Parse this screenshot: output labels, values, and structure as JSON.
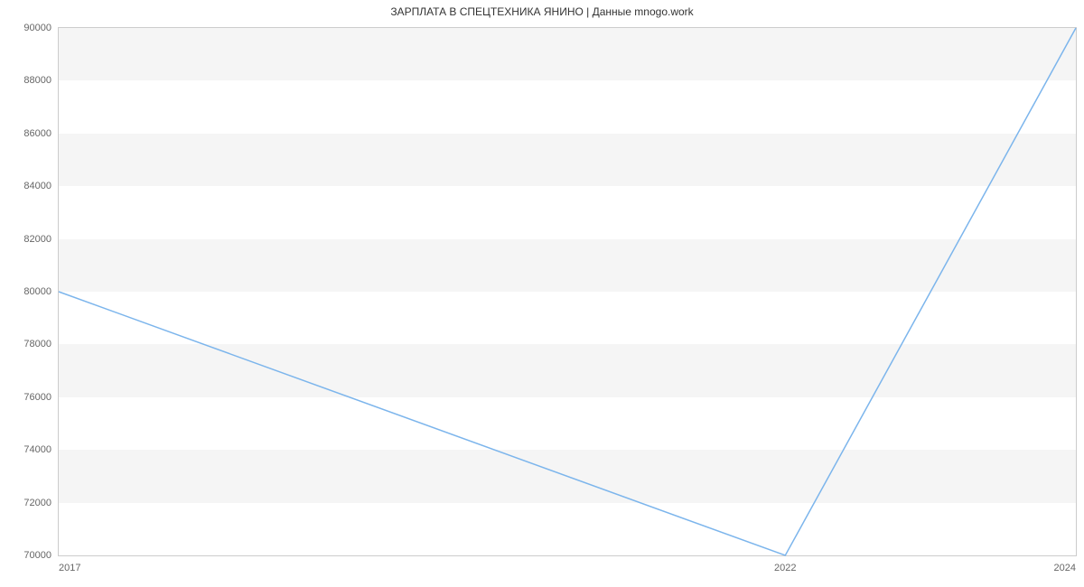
{
  "chart": {
    "type": "line",
    "title": "ЗАРПЛАТА В СПЕЦТЕХНИКА ЯНИНО | Данные mnogo.work",
    "title_fontsize": 12,
    "title_color": "#333333",
    "background_color": "#ffffff",
    "plot_border_color": "#cccccc",
    "grid_band_color": "#f5f5f5",
    "tick_font_color": "#666666",
    "tick_fontsize": 11,
    "line_color": "#7cb5ec",
    "line_width": 1.5,
    "x": {
      "values": [
        2017,
        2022,
        2024
      ],
      "lim": [
        2017,
        2024
      ],
      "tick_labels": [
        "2017",
        "2022",
        "2024"
      ]
    },
    "y": {
      "values": [
        80000,
        70000,
        90000
      ],
      "lim": [
        70000,
        90000
      ],
      "ticks": [
        70000,
        72000,
        74000,
        76000,
        78000,
        80000,
        82000,
        84000,
        86000,
        88000,
        90000
      ],
      "tick_labels": [
        "70000",
        "72000",
        "74000",
        "76000",
        "78000",
        "80000",
        "82000",
        "84000",
        "86000",
        "88000",
        "90000"
      ]
    }
  }
}
